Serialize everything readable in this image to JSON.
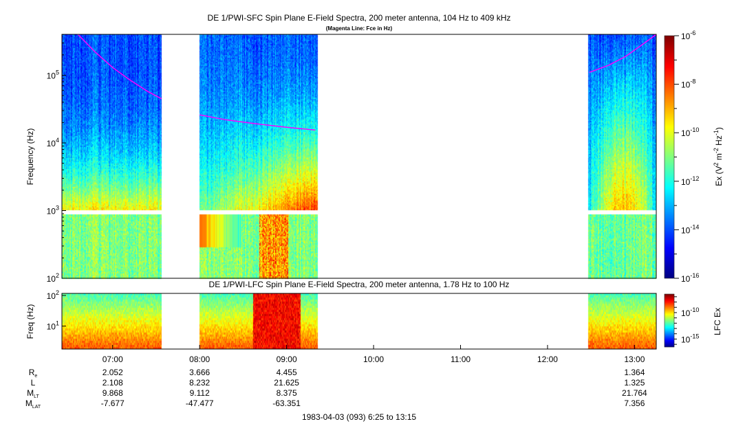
{
  "chart_data": {
    "type": "heatmap",
    "title": "DE 1/PWI-SFC  Spin Plane E-Field Spectra, 200 meter antenna, 104 Hz to 409 kHz",
    "subtitle": "(Magenta Line: Fce in Hz)",
    "lfc_title": "DE 1/PWI-LFC  Spin Plane E-Field Spectra, 200 meter antenna, 1.78 Hz to 100 Hz",
    "ylabel": "Frequency (Hz)",
    "lfc_ylabel": "Freq (Hz)",
    "colorbar_label": "Ex (V2 m-2 Hz-1)",
    "colorbar_label_parts": {
      "pre": "Ex (V",
      "e1": "2",
      "mid": " m",
      "e2": "-2",
      "hz": " Hz",
      "e3": "-1",
      "post": ")"
    },
    "lfc_colorbar_label": "LFC Ex",
    "sfc_ylim_hz": [
      104,
      409000
    ],
    "lfc_ylim_hz": [
      1.78,
      100
    ],
    "sfc_yticks": [
      {
        "base": "10",
        "exp": "5",
        "value": 100000
      },
      {
        "base": "10",
        "exp": "4",
        "value": 10000
      },
      {
        "base": "10",
        "exp": "3",
        "value": 1000
      },
      {
        "base": "10",
        "exp": "2",
        "value": 100
      }
    ],
    "lfc_yticks": [
      {
        "base": "10",
        "exp": "2",
        "value": 100
      },
      {
        "base": "10",
        "exp": "1",
        "value": 10
      }
    ],
    "colorbar_ticks": [
      {
        "base": "10",
        "exp": "-6",
        "value": -6
      },
      {
        "base": "10",
        "exp": "-8",
        "value": -8
      },
      {
        "base": "10",
        "exp": "-10",
        "value": -10
      },
      {
        "base": "10",
        "exp": "-12",
        "value": -12
      },
      {
        "base": "10",
        "exp": "-14",
        "value": -14
      },
      {
        "base": "10",
        "exp": "-16",
        "value": -16
      }
    ],
    "colorbar_range_log": [
      -16,
      -6
    ],
    "lfc_colorbar_ticks": [
      {
        "base": "10",
        "exp": "-10",
        "value": -10
      },
      {
        "base": "10",
        "exp": "-15",
        "value": -15
      }
    ],
    "lfc_colorbar_range_log": [
      -16.5,
      -6.5
    ],
    "colormap": "jet",
    "x_range_hours": [
      6.4167,
      13.25
    ],
    "x_ticks": [
      {
        "label": "07:00",
        "hour": 7
      },
      {
        "label": "08:00",
        "hour": 8
      },
      {
        "label": "09:00",
        "hour": 9
      },
      {
        "label": "10:00",
        "hour": 10
      },
      {
        "label": "11:00",
        "hour": 11
      },
      {
        "label": "12:00",
        "hour": 12
      },
      {
        "label": "13:00",
        "hour": 13
      }
    ],
    "data_segments_hours": [
      [
        6.4167,
        7.56
      ],
      [
        8.0,
        9.36
      ],
      [
        12.47,
        13.25
      ]
    ],
    "fce_line": {
      "color": "#ff00ff",
      "segments": [
        [
          [
            6.6,
            409000
          ],
          [
            6.8,
            220000
          ],
          [
            7.0,
            130000
          ],
          [
            7.2,
            85000
          ],
          [
            7.4,
            58000
          ],
          [
            7.56,
            45000
          ]
        ],
        [
          [
            8.0,
            26000
          ],
          [
            8.3,
            22000
          ],
          [
            8.6,
            19500
          ],
          [
            9.0,
            17000
          ],
          [
            9.33,
            15500
          ]
        ],
        [
          [
            12.48,
            110000
          ],
          [
            12.7,
            140000
          ],
          [
            12.9,
            190000
          ],
          [
            13.1,
            290000
          ],
          [
            13.25,
            409000
          ]
        ]
      ]
    },
    "ephemeris": {
      "rows": [
        {
          "label": "R",
          "sub": "e",
          "values": [
            "2.052",
            "3.666",
            "4.455",
            "1.364"
          ]
        },
        {
          "label": "L",
          "sub": "",
          "values": [
            "2.108",
            "8.232",
            "21.625",
            "1.325"
          ]
        },
        {
          "label": "M",
          "sub": "LT",
          "values": [
            "9.868",
            "9.112",
            "8.375",
            "21.764"
          ]
        },
        {
          "label": "M",
          "sub": "LAT",
          "values": [
            "-7.677",
            "-47.477",
            "-63.351",
            "7.356"
          ]
        }
      ],
      "value_hours": [
        7,
        8,
        9,
        13
      ]
    },
    "footer": "1983-04-03 (093) 6:25 to 13:15"
  }
}
